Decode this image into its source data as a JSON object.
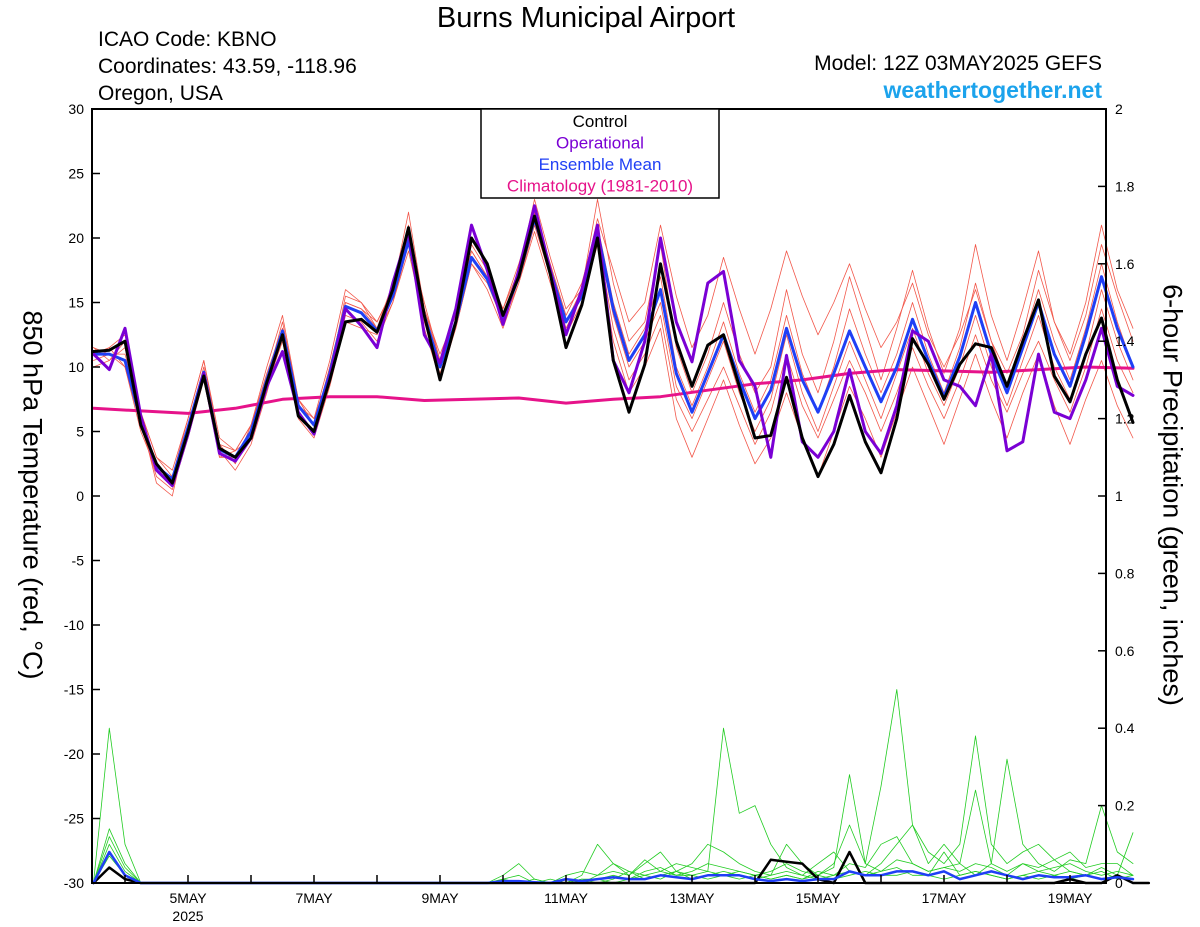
{
  "header": {
    "title": "Burns Municipal Airport",
    "icao": "ICAO Code: KBNO",
    "coordinates": "Coordinates: 43.59, -118.96",
    "region": "Oregon, USA",
    "model": "Model: 12Z 03MAY2025 GEFS",
    "brand": "weathertogether.net"
  },
  "colors": {
    "control": "#000000",
    "operational": "#7a00d4",
    "ensemble_mean": "#1f3ff5",
    "climatology": "#e6138a",
    "members_temp": "#f2574a",
    "members_precip": "#22cc22",
    "brand": "#1ca3ec"
  },
  "chart_data": {
    "type": "line",
    "title": "Burns Municipal Airport",
    "ylabel": "850 hPa Temperature (red, °C)",
    "y2label": "6-hour Precipitation (green, inches)",
    "ylim": [
      -30,
      30
    ],
    "y2lim": [
      0,
      2
    ],
    "yticks": [
      -30,
      -25,
      -20,
      -15,
      -10,
      -5,
      0,
      5,
      10,
      15,
      20,
      25,
      30
    ],
    "y2ticks": [
      "0",
      "0.2",
      "0.4",
      "0.6",
      "0.8",
      "1",
      "1.2",
      "1.4",
      "1.6",
      "1.8",
      "2"
    ],
    "xticks": [
      {
        "day": 5,
        "label": "5MAY",
        "sub": "2025"
      },
      {
        "day": 7,
        "label": "7MAY"
      },
      {
        "day": 9,
        "label": "9MAY"
      },
      {
        "day": 11,
        "label": "11MAY"
      },
      {
        "day": 13,
        "label": "13MAY"
      },
      {
        "day": 15,
        "label": "15MAY"
      },
      {
        "day": 17,
        "label": "17MAY"
      },
      {
        "day": 19,
        "label": "19MAY"
      }
    ],
    "x_start": "2025-05-03 12Z",
    "x_step_hours": 6,
    "legend": [
      "Control",
      "Operational",
      "Ensemble Mean",
      "Climatology (1981-2010)"
    ],
    "legend_position": "top-center",
    "series": [
      {
        "name": "Control",
        "role": "control",
        "values": [
          11.2,
          11.3,
          12.0,
          5.5,
          2.5,
          1.0,
          5.0,
          9.3,
          3.7,
          3.0,
          4.5,
          8.8,
          12.5,
          6.2,
          5.0,
          9.0,
          13.5,
          13.7,
          12.7,
          16.0,
          20.8,
          14.0,
          9.0,
          13.5,
          20.0,
          18.0,
          14.0,
          17.0,
          21.7,
          17.2,
          11.5,
          14.8,
          20.0,
          10.5,
          6.5,
          10.2,
          18.0,
          12.0,
          8.5,
          11.7,
          12.5,
          8.5,
          4.5,
          4.7,
          9.2,
          4.5,
          1.5,
          4.0,
          7.8,
          4.2,
          1.8,
          6.0,
          12.2,
          10.2,
          7.5,
          10.2,
          11.8,
          11.5,
          8.5,
          12.0,
          15.2,
          9.3,
          7.3,
          11.0,
          13.8,
          9.0,
          5.7
        ]
      },
      {
        "name": "Operational",
        "role": "operational",
        "values": [
          11.0,
          9.8,
          13.0,
          6.2,
          2.0,
          0.8,
          4.8,
          9.5,
          3.3,
          2.7,
          4.5,
          8.5,
          11.2,
          6.5,
          4.8,
          9.2,
          14.5,
          13.2,
          11.5,
          16.5,
          20.5,
          12.5,
          10.3,
          14.5,
          21.0,
          17.5,
          13.3,
          17.5,
          22.5,
          17.5,
          12.5,
          16.0,
          21.0,
          10.5,
          8.0,
          12.0,
          20.0,
          13.5,
          10.4,
          16.5,
          17.4,
          10.5,
          8.5,
          3.0,
          10.9,
          4.2,
          3.0,
          5.0,
          9.8,
          5.0,
          3.3,
          7.0,
          12.8,
          12.0,
          9.0,
          8.5,
          7.0,
          11.0,
          3.5,
          4.2,
          11.0,
          6.5,
          6.0,
          9.0,
          13.0,
          8.5,
          7.8
        ]
      },
      {
        "name": "Ensemble Mean",
        "role": "mean",
        "values": [
          11.0,
          11.0,
          10.5,
          5.8,
          2.3,
          1.3,
          5.3,
          9.6,
          3.6,
          3.0,
          5.0,
          9.0,
          12.8,
          7.0,
          5.5,
          9.5,
          14.7,
          14.2,
          12.8,
          15.5,
          19.8,
          14.0,
          10.0,
          13.5,
          18.5,
          16.8,
          13.8,
          17.0,
          21.5,
          17.5,
          13.5,
          15.5,
          20.5,
          14.5,
          10.5,
          12.5,
          16.0,
          9.5,
          6.5,
          9.5,
          12.5,
          9.0,
          6.0,
          8.2,
          13.0,
          9.0,
          6.5,
          9.5,
          12.8,
          10.0,
          7.3,
          10.0,
          13.7,
          10.5,
          7.7,
          10.8,
          15.0,
          11.0,
          8.0,
          11.5,
          15.0,
          11.0,
          8.5,
          12.5,
          17.0,
          13.0,
          10.0
        ]
      },
      {
        "name": "Climatology (1981-2010)",
        "role": "climatology",
        "values": [
          6.8,
          6.6,
          6.4,
          6.8,
          7.5,
          7.7,
          7.7,
          7.4,
          7.5,
          7.6,
          7.2,
          7.5,
          7.7,
          8.2,
          8.7,
          9.0,
          9.5,
          9.8,
          9.7,
          9.6,
          9.8,
          10.0,
          9.9
        ]
      },
      {
        "name": "Control precip",
        "role": "control_precip",
        "values": [
          0,
          0.04,
          0.01,
          0,
          0,
          0,
          0,
          0,
          0,
          0,
          0,
          0,
          0,
          0,
          0,
          0,
          0,
          0,
          0,
          0,
          0,
          0,
          0,
          0,
          0,
          0,
          0,
          0,
          0,
          0,
          0,
          0,
          0,
          0,
          0,
          0,
          0,
          0,
          0,
          0,
          0,
          0,
          0,
          0.06,
          0.055,
          0.05,
          0.01,
          0,
          0.08,
          0,
          0,
          0,
          0,
          0,
          0,
          0,
          0,
          0,
          0,
          0,
          0,
          0,
          0.01,
          0,
          0,
          0.02,
          0,
          0
        ]
      },
      {
        "name": "Ensemble Mean precip",
        "role": "mean_precip",
        "values": [
          0,
          0.08,
          0.02,
          0,
          0,
          0,
          0,
          0,
          0,
          0,
          0,
          0,
          0,
          0,
          0,
          0,
          0,
          0,
          0,
          0,
          0,
          0,
          0,
          0,
          0,
          0,
          0.005,
          0.005,
          0.002,
          0,
          0.01,
          0.005,
          0.01,
          0.015,
          0.01,
          0.01,
          0.02,
          0.015,
          0.01,
          0.02,
          0.02,
          0.02,
          0.01,
          0.005,
          0.01,
          0.005,
          0.01,
          0.01,
          0.03,
          0.02,
          0.02,
          0.03,
          0.03,
          0.02,
          0.03,
          0.01,
          0.02,
          0.03,
          0.02,
          0.01,
          0.02,
          0.015,
          0.015,
          0.02,
          0.01,
          0.015,
          0.01
        ]
      }
    ],
    "members_temp": [
      [
        11.5,
        10.5,
        12.0,
        6.0,
        1.0,
        0.0,
        5.5,
        10.0,
        4.0,
        2.5,
        5.5,
        9.0,
        13.5,
        7.5,
        5.5,
        10.0,
        15.0,
        14.5,
        13.5,
        16.0,
        22.0,
        14.5,
        11.0,
        14.0,
        19.5,
        17.5,
        14.5,
        17.5,
        23.0,
        18.5,
        14.5,
        16.0,
        23.0,
        16.5,
        12.0,
        13.5,
        19.5,
        11.5,
        8.0,
        11.0,
        15.0,
        11.0,
        8.0,
        10.0,
        16.0,
        11.0,
        8.0,
        12.0,
        17.0,
        13.0,
        9.0,
        13.0,
        17.5,
        13.0,
        9.5,
        13.0,
        19.5,
        14.0,
        10.5,
        14.5,
        19.0,
        13.5,
        11.0,
        15.0,
        21.0,
        16.0,
        13.0
      ],
      [
        11.0,
        11.5,
        10.0,
        5.0,
        2.0,
        1.5,
        5.0,
        9.0,
        3.0,
        3.5,
        4.5,
        8.5,
        12.0,
        6.5,
        5.0,
        9.0,
        14.0,
        13.5,
        12.0,
        15.0,
        19.0,
        13.5,
        9.5,
        13.0,
        18.0,
        16.0,
        13.0,
        16.5,
        21.0,
        17.0,
        12.5,
        15.0,
        20.0,
        13.0,
        9.0,
        11.0,
        14.0,
        7.5,
        5.0,
        7.5,
        10.0,
        7.0,
        4.0,
        6.5,
        11.0,
        7.0,
        4.5,
        7.5,
        10.5,
        8.0,
        5.0,
        8.0,
        11.5,
        8.5,
        6.0,
        9.0,
        12.5,
        9.0,
        6.5,
        9.5,
        12.0,
        9.0,
        6.5,
        10.0,
        14.5,
        10.5,
        8.0
      ],
      [
        10.5,
        11.0,
        11.0,
        6.5,
        3.0,
        2.0,
        6.0,
        10.5,
        4.5,
        3.5,
        5.5,
        9.5,
        13.0,
        7.0,
        6.0,
        9.5,
        15.5,
        15.0,
        13.0,
        15.5,
        20.5,
        14.0,
        10.0,
        13.5,
        19.0,
        17.0,
        14.0,
        17.0,
        21.5,
        17.5,
        13.5,
        16.0,
        21.5,
        17.5,
        13.5,
        15.0,
        21.0,
        15.5,
        11.5,
        14.0,
        18.5,
        14.5,
        11.0,
        14.5,
        19.0,
        15.5,
        12.5,
        15.0,
        18.0,
        14.5,
        11.5,
        13.5,
        16.5,
        12.5,
        10.0,
        12.5,
        16.0,
        12.0,
        9.5,
        12.5,
        17.5,
        13.5,
        10.5,
        14.0,
        19.5,
        15.5,
        12.0
      ],
      [
        11.5,
        11.0,
        10.0,
        5.5,
        1.5,
        0.5,
        4.5,
        9.0,
        3.5,
        2.0,
        4.0,
        8.0,
        12.5,
        6.0,
        4.5,
        8.5,
        13.5,
        13.0,
        12.5,
        15.0,
        19.5,
        13.0,
        9.0,
        13.0,
        18.0,
        16.5,
        13.5,
        16.5,
        20.5,
        16.5,
        12.5,
        15.0,
        19.5,
        12.0,
        8.0,
        10.0,
        13.0,
        6.0,
        3.0,
        6.0,
        9.0,
        5.5,
        2.5,
        4.5,
        8.0,
        4.5,
        1.5,
        5.0,
        8.5,
        6.0,
        3.0,
        6.5,
        10.0,
        7.0,
        4.0,
        7.5,
        11.0,
        7.5,
        4.5,
        8.0,
        11.0,
        7.0,
        4.0,
        7.5,
        10.5,
        7.0,
        4.5
      ],
      [
        10.0,
        10.5,
        11.5,
        6.0,
        2.5,
        1.0,
        5.0,
        9.5,
        3.0,
        3.0,
        5.0,
        9.0,
        13.0,
        7.5,
        5.5,
        10.0,
        15.0,
        14.5,
        13.0,
        16.5,
        20.0,
        15.0,
        10.5,
        14.5,
        19.0,
        17.0,
        14.5,
        18.0,
        22.0,
        18.0,
        14.0,
        16.5,
        21.0,
        15.0,
        11.0,
        13.0,
        17.0,
        10.0,
        7.0,
        10.0,
        13.5,
        9.5,
        6.5,
        9.0,
        14.0,
        9.5,
        6.5,
        10.0,
        14.5,
        11.0,
        8.0,
        11.0,
        15.0,
        11.0,
        8.0,
        11.5,
        16.5,
        12.0,
        8.5,
        12.0,
        16.0,
        12.0,
        9.0,
        13.0,
        18.0,
        13.5,
        10.0
      ],
      [
        11.0,
        11.5,
        12.5,
        6.5,
        3.0,
        1.5,
        6.0,
        10.5,
        4.0,
        3.5,
        5.5,
        10.0,
        14.0,
        7.5,
        6.0,
        10.5,
        16.0,
        15.0,
        13.5,
        16.0,
        21.0,
        14.5,
        10.5,
        13.5,
        18.5,
        17.0,
        14.0,
        17.5,
        22.0,
        17.5,
        13.0,
        15.5,
        20.0,
        14.0,
        10.0,
        12.0,
        15.0,
        8.5,
        6.0,
        9.0,
        12.0,
        8.0,
        5.0,
        7.5,
        12.5,
        8.0,
        5.0,
        8.5,
        12.0,
        9.0,
        6.0,
        9.5,
        13.0,
        9.5,
        7.0,
        10.0,
        14.0,
        10.0,
        7.0,
        10.5,
        14.0,
        10.0,
        7.5,
        11.0,
        16.0,
        12.0,
        9.0
      ]
    ],
    "members_precip": [
      [
        0,
        0.4,
        0.1,
        0,
        0,
        0,
        0,
        0,
        0,
        0,
        0,
        0,
        0,
        0,
        0,
        0,
        0,
        0,
        0,
        0,
        0,
        0,
        0,
        0,
        0,
        0,
        0.02,
        0.05,
        0.01,
        0,
        0.02,
        0.03,
        0.02,
        0.05,
        0.03,
        0.02,
        0.03,
        0.05,
        0.04,
        0.03,
        0.4,
        0.18,
        0.2,
        0.1,
        0.04,
        0.02,
        0.05,
        0.08,
        0.03,
        0.02,
        0.05,
        0.1,
        0.15,
        0.08,
        0.05,
        0.1,
        0.38,
        0.1,
        0.05,
        0.08,
        0.1,
        0.06,
        0.08,
        0.04,
        0.05,
        0.05,
        0.02
      ],
      [
        0,
        0.12,
        0.04,
        0,
        0,
        0,
        0,
        0,
        0,
        0,
        0,
        0,
        0,
        0,
        0,
        0,
        0,
        0,
        0,
        0,
        0,
        0,
        0,
        0,
        0,
        0,
        0.01,
        0,
        0,
        0.01,
        0,
        0.02,
        0.1,
        0.05,
        0.02,
        0.05,
        0.08,
        0.03,
        0.05,
        0.1,
        0.08,
        0.05,
        0.03,
        0.02,
        0.1,
        0.05,
        0.02,
        0.05,
        0.15,
        0.05,
        0.25,
        0.5,
        0.15,
        0.05,
        0.1,
        0.05,
        0.02,
        0.05,
        0.32,
        0.1,
        0.05,
        0.03,
        0.06,
        0.05,
        0.2,
        0.08,
        0.05
      ],
      [
        0,
        0.1,
        0.03,
        0,
        0,
        0,
        0,
        0,
        0,
        0,
        0,
        0,
        0,
        0,
        0,
        0,
        0,
        0,
        0,
        0,
        0,
        0,
        0,
        0,
        0,
        0,
        0,
        0,
        0.01,
        0,
        0.01,
        0,
        0.02,
        0.03,
        0.02,
        0.06,
        0.03,
        0.02,
        0.03,
        0.05,
        0.04,
        0.03,
        0.02,
        0.03,
        0.05,
        0.03,
        0.02,
        0.04,
        0.28,
        0.05,
        0.03,
        0.06,
        0.05,
        0.03,
        0.04,
        0.05,
        0.24,
        0.05,
        0.03,
        0.05,
        0.04,
        0.06,
        0.03,
        0.02,
        0.04,
        0.02,
        0.13
      ],
      [
        0,
        0.08,
        0.02,
        0,
        0,
        0,
        0,
        0,
        0,
        0,
        0,
        0,
        0,
        0,
        0,
        0,
        0,
        0,
        0,
        0,
        0,
        0,
        0,
        0,
        0,
        0,
        0.01,
        0.02,
        0,
        0,
        0,
        0.01,
        0.01,
        0.02,
        0.01,
        0.03,
        0.04,
        0.02,
        0.02,
        0.03,
        0.02,
        0.01,
        0.02,
        0.01,
        0.02,
        0.01,
        0.03,
        0.02,
        0.05,
        0.04,
        0.1,
        0.12,
        0.05,
        0.03,
        0.04,
        0.03,
        0.05,
        0.04,
        0.02,
        0.05,
        0.03,
        0.04,
        0.05,
        0.03,
        0.02,
        0.03,
        0.02
      ],
      [
        0,
        0.14,
        0.05,
        0,
        0,
        0,
        0,
        0,
        0,
        0,
        0,
        0,
        0,
        0,
        0,
        0,
        0,
        0,
        0,
        0,
        0,
        0,
        0,
        0,
        0,
        0,
        0,
        0,
        0,
        0,
        0,
        0.01,
        0,
        0.01,
        0.03,
        0.01,
        0.02,
        0.03,
        0.01,
        0.02,
        0.03,
        0.02,
        0.01,
        0.02,
        0.03,
        0.02,
        0.01,
        0.02,
        0.03,
        0.02,
        0.03,
        0.04,
        0.02,
        0.02,
        0.08,
        0.02,
        0.03,
        0.02,
        0.01,
        0.02,
        0.03,
        0.02,
        0.01,
        0.02,
        0.03,
        0.01,
        0.02
      ],
      [
        0,
        0.07,
        0.02,
        0,
        0,
        0,
        0,
        0,
        0,
        0,
        0,
        0,
        0,
        0,
        0,
        0,
        0,
        0,
        0,
        0,
        0,
        0,
        0,
        0,
        0,
        0,
        0,
        0,
        0,
        0,
        0,
        0,
        0.01,
        0,
        0.01,
        0.02,
        0.01,
        0.03,
        0.02,
        0.01,
        0.02,
        0.03,
        0.02,
        0.01,
        0.02,
        0.01,
        0.02,
        0.01,
        0.02,
        0.03,
        0.02,
        0.02,
        0.03,
        0.02,
        0.01,
        0.02,
        0.03,
        0.02,
        0.01,
        0.02,
        0.01,
        0.02,
        0.03,
        0.02,
        0.01,
        0.02,
        0.01
      ]
    ]
  }
}
